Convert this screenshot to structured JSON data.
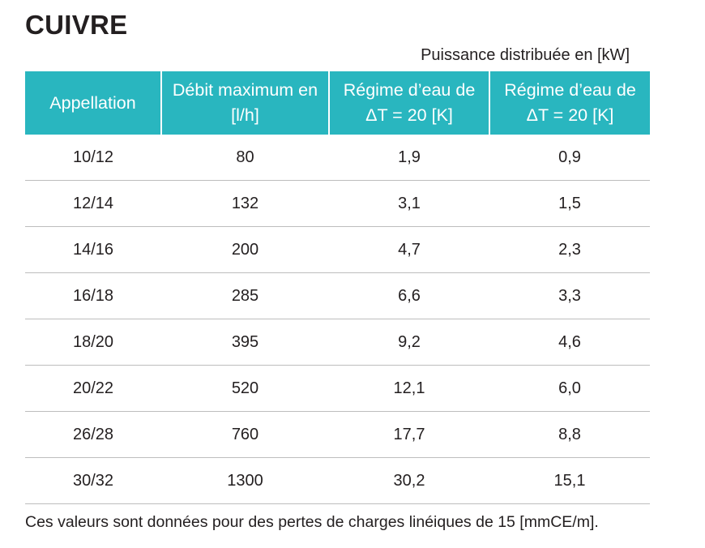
{
  "title": "CUIVRE",
  "unit_caption": "Puissance distribuée en [kW]",
  "table": {
    "headers": [
      "Appellation",
      "Débit maximum en [l/h]",
      "Régime d’eau de ΔT = 20 [K]",
      "Régime d’eau de ΔT = 20 [K]"
    ],
    "rows": [
      [
        "10/12",
        "80",
        "1,9",
        "0,9"
      ],
      [
        "12/14",
        "132",
        "3,1",
        "1,5"
      ],
      [
        "14/16",
        "200",
        "4,7",
        "2,3"
      ],
      [
        "16/18",
        "285",
        "6,6",
        "3,3"
      ],
      [
        "18/20",
        "395",
        "9,2",
        "4,6"
      ],
      [
        "20/22",
        "520",
        "12,1",
        "6,0"
      ],
      [
        "26/28",
        "760",
        "17,7",
        "8,8"
      ],
      [
        "30/32",
        "1300",
        "30,2",
        "15,1"
      ]
    ]
  },
  "footnote": "Ces valeurs sont données pour des pertes de charges linéiques de 15 [mmCE/m].",
  "colors": {
    "header_bg": "#29b6bf",
    "header_text": "#ffffff",
    "text": "#231f20",
    "row_divider": "#bdbdbd"
  }
}
